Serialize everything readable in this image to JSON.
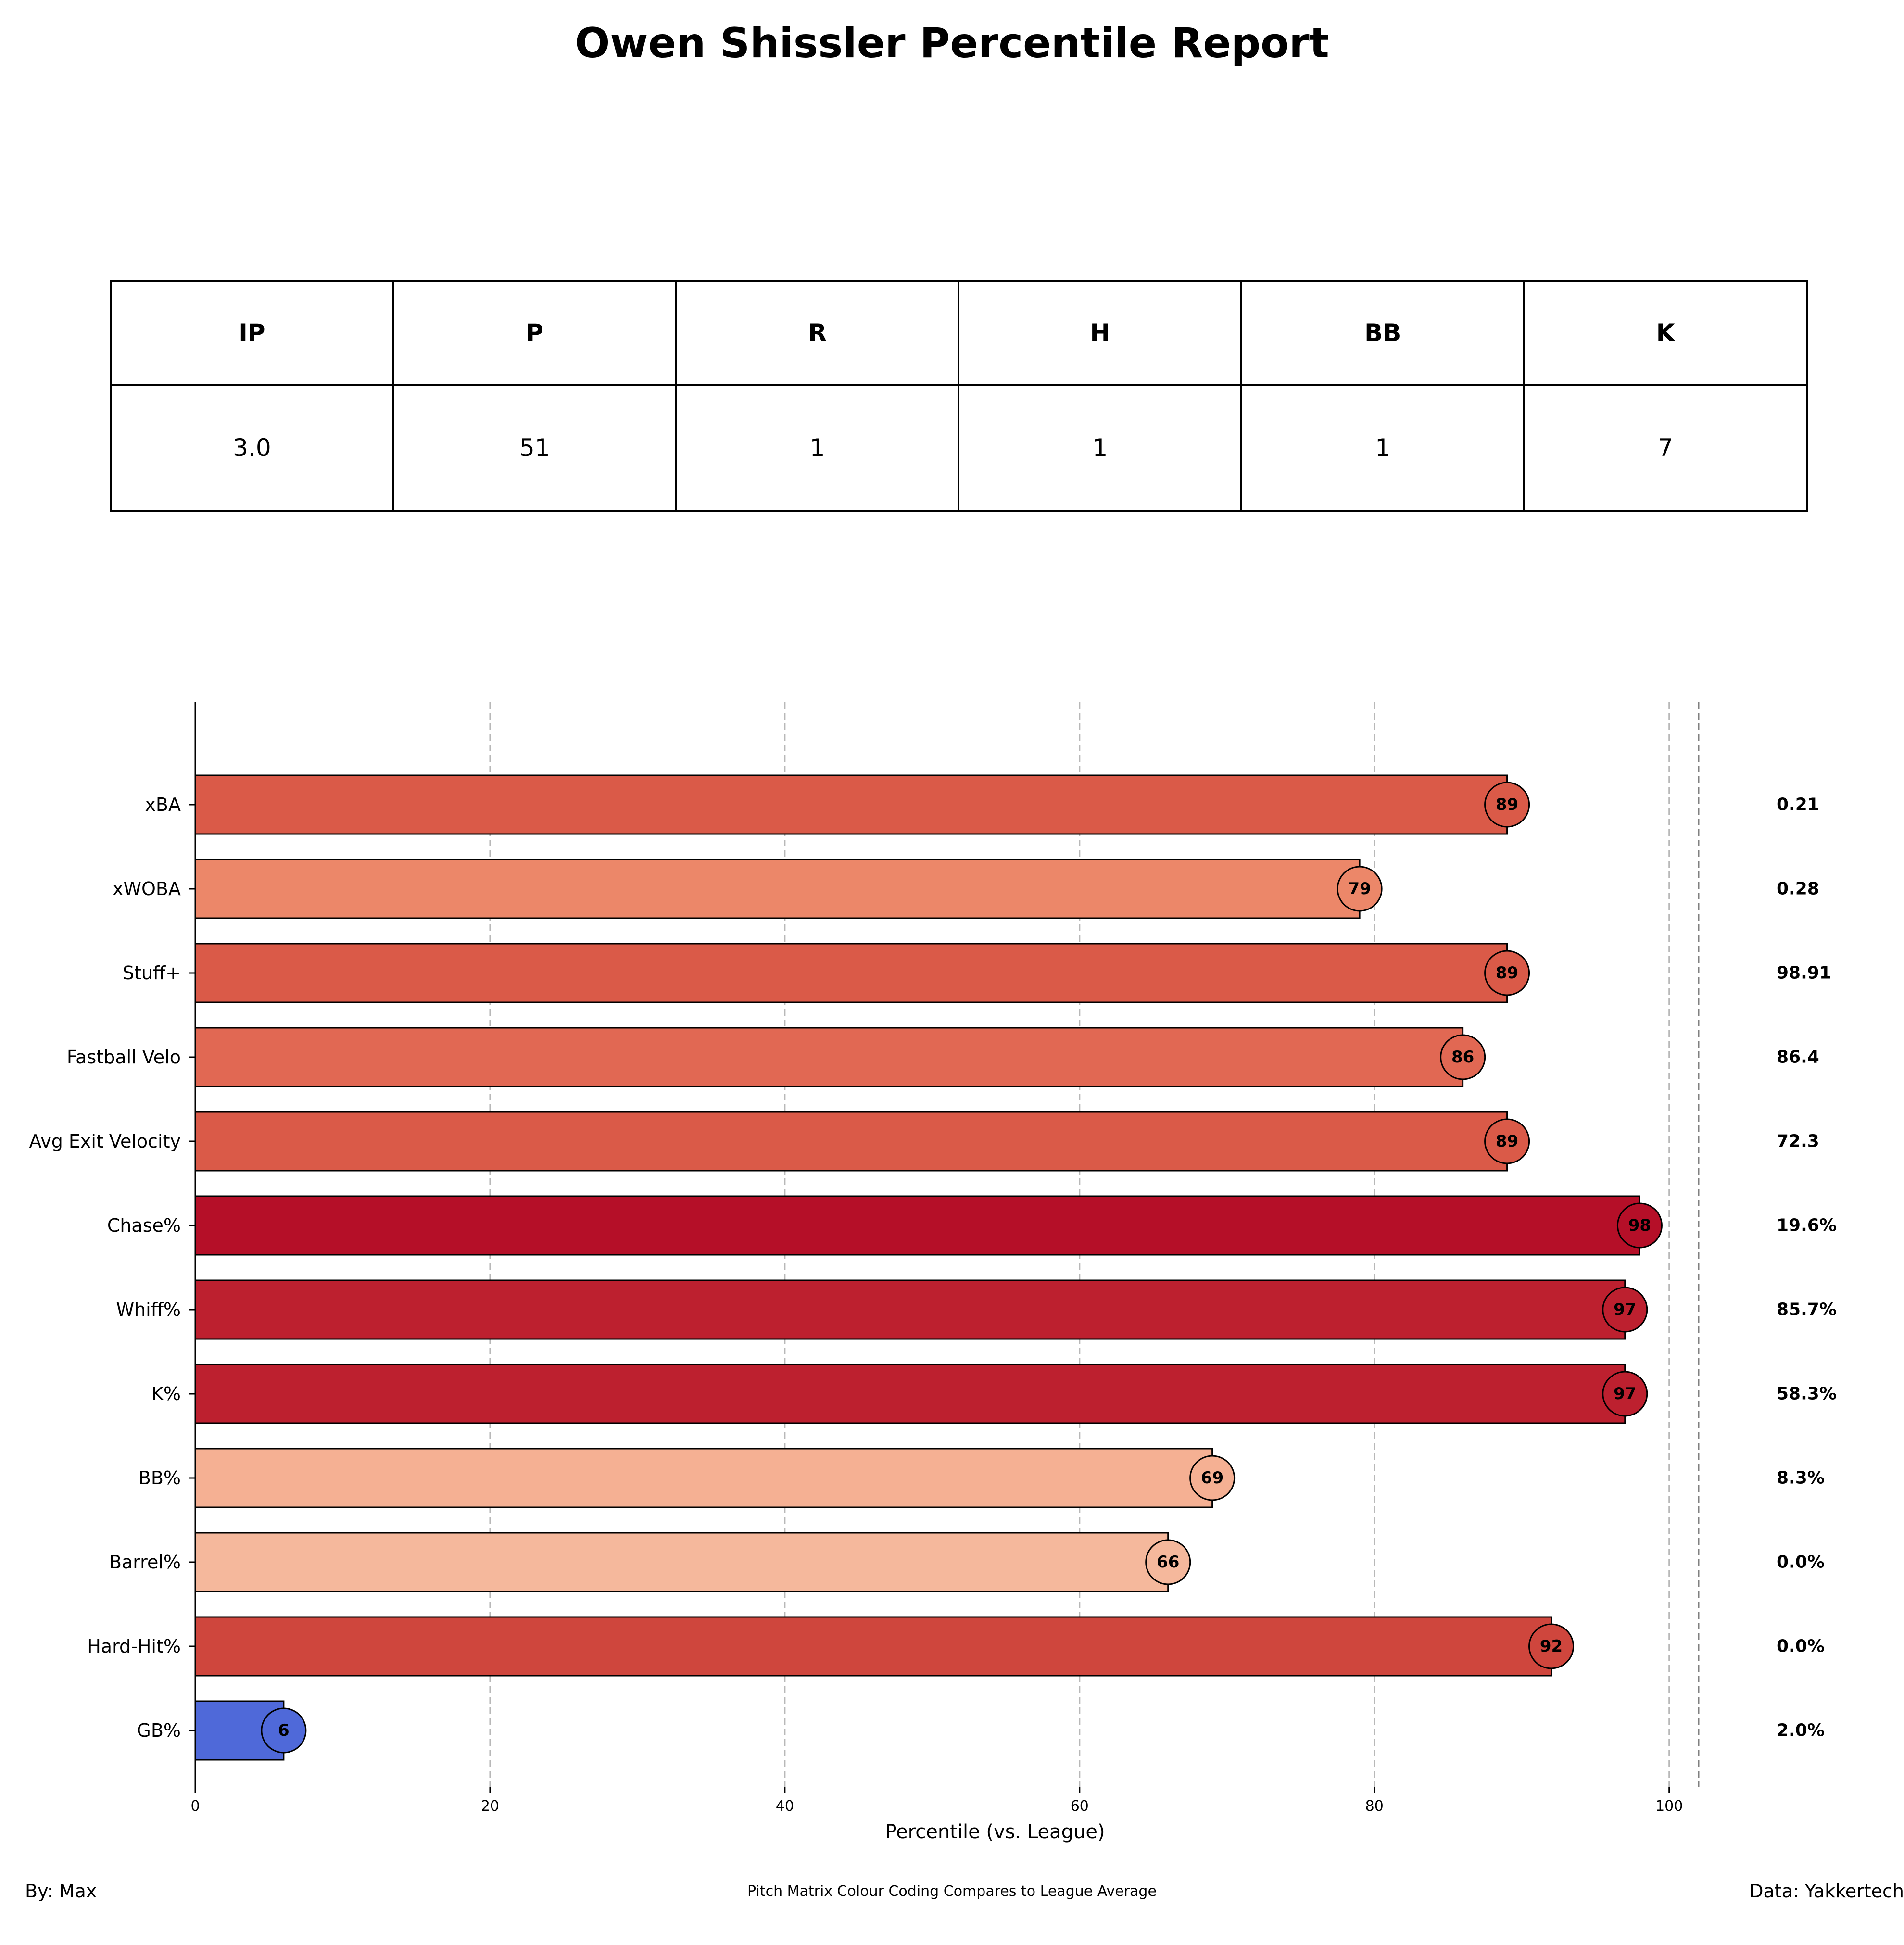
{
  "title": "Owen Shissler Percentile Report",
  "stats_table": {
    "headers": [
      "IP",
      "P",
      "R",
      "H",
      "BB",
      "K"
    ],
    "values": [
      "3.0",
      "51",
      "1",
      "1",
      "1",
      "7"
    ]
  },
  "chart_data": {
    "type": "bar",
    "orientation": "horizontal",
    "categories": [
      "xBA",
      "xWOBA",
      "Stuff+",
      "Fastball Velo",
      "Avg Exit Velocity",
      "Chase%",
      "Whiff%",
      "K%",
      "BB%",
      "Barrel%",
      "Hard-Hit%",
      "GB%"
    ],
    "values": [
      89,
      79,
      89,
      86,
      89,
      98,
      97,
      97,
      69,
      66,
      92,
      6
    ],
    "bar_labels": [
      "89",
      "79",
      "89",
      "86",
      "89",
      "98",
      "97",
      "97",
      "69",
      "66",
      "92",
      "6"
    ],
    "raw_values": [
      "0.21",
      "0.28",
      "98.91",
      "86.4",
      "72.3",
      "19.6%",
      "85.7%",
      "58.3%",
      "8.3%",
      "0.0%",
      "0.0%",
      "2.0%"
    ],
    "bar_colors": [
      "#da5a48",
      "#ec8769",
      "#da5a48",
      "#e16853",
      "#da5a48",
      "#b50f28",
      "#bd202f",
      "#bd202f",
      "#f5b093",
      "#f5b89c",
      "#cf463d",
      "#4f69d9"
    ],
    "xlabel": "Percentile (vs. League)",
    "xlim": [
      0,
      102
    ],
    "xticks": [
      0,
      20,
      40,
      60,
      80,
      100
    ],
    "grid": "vertical dashed",
    "colormap": "coolwarm"
  },
  "footer": {
    "left": "By: Max",
    "center": "Pitch Matrix Colour Coding Compares to League Average",
    "right": "Data: Yakkertech"
  }
}
